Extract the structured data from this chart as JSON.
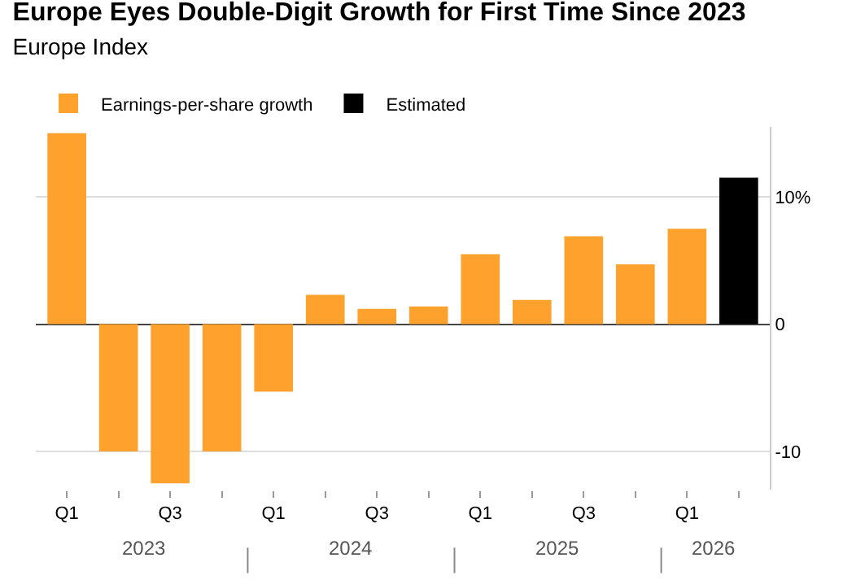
{
  "chart_data": {
    "type": "bar",
    "title": "Europe Eyes Double-Digit Growth for First Time Since 2023",
    "subtitle": "Europe Index",
    "categories": [
      "Q1",
      null,
      "Q3",
      null,
      "Q1",
      null,
      "Q3",
      null,
      "Q1",
      null,
      "Q3",
      null,
      "Q1",
      null
    ],
    "series": [
      {
        "name": "Earnings-per-share growth",
        "color": "#ffa22d",
        "values": [
          15.0,
          -10.0,
          -12.5,
          -10.0,
          -5.3,
          2.3,
          1.2,
          1.4,
          5.5,
          1.9,
          6.9,
          4.7,
          7.5,
          null
        ]
      },
      {
        "name": "Estimated",
        "color": "#000000",
        "values": [
          null,
          null,
          null,
          null,
          null,
          null,
          null,
          null,
          null,
          null,
          null,
          null,
          null,
          11.5
        ]
      }
    ],
    "annotations": [
      "2023",
      "2024",
      "2025",
      "2026"
    ],
    "ylim": [
      -13,
      15.5
    ],
    "yticks": [
      {
        "value": 10,
        "label": "10%"
      },
      0,
      -10
    ],
    "grid": "y",
    "legend": "top left"
  }
}
